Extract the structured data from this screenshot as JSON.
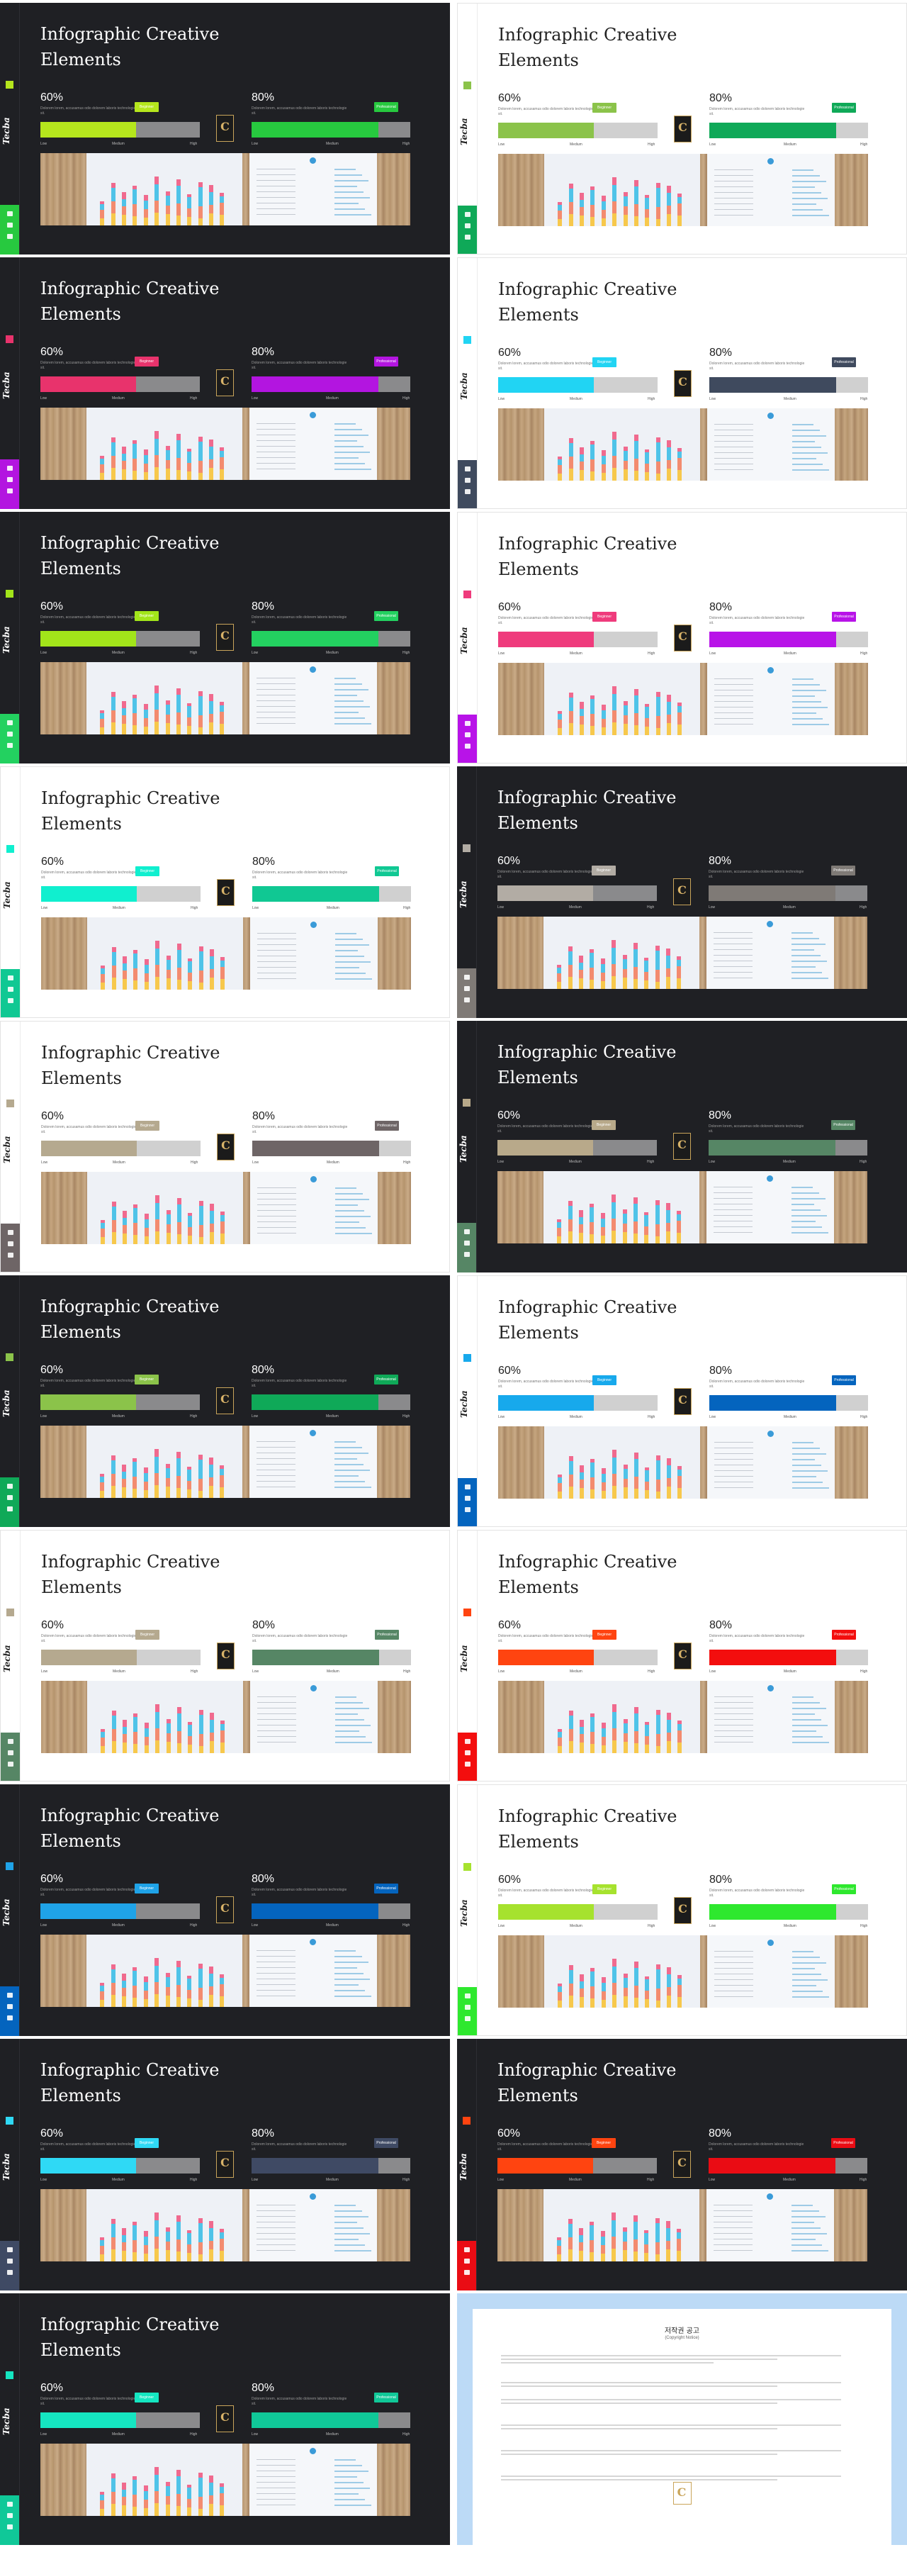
{
  "common": {
    "title": "Infographic Creative Elements",
    "brand": "Tecba",
    "left_percent": "60%",
    "right_percent": "80%",
    "description": "Dolorem lorem, accusamus odio dolorem laboris technologie sit.",
    "left_badge": "Beginner",
    "right_badge": "Professional",
    "scale_low": "Low",
    "scale_medium": "Medium",
    "scale_high": "High",
    "logo_letter": "C"
  },
  "slides": [
    {
      "theme": "dark",
      "left": "#b5e61d",
      "right": "#27c93f"
    },
    {
      "theme": "light",
      "left": "#8bc34a",
      "right": "#0fa958"
    },
    {
      "theme": "dark",
      "left": "#e8336c",
      "right": "#b315e0"
    },
    {
      "theme": "light",
      "left": "#21d4f3",
      "right": "#3f4a5e"
    },
    {
      "theme": "dark",
      "left": "#a2e51a",
      "right": "#23d160"
    },
    {
      "theme": "light",
      "left": "#ef3b7c",
      "right": "#b813e8"
    },
    {
      "theme": "light",
      "left": "#10efcf",
      "right": "#10c893"
    },
    {
      "theme": "dark",
      "left": "#b2aca4",
      "right": "#7f7a76"
    },
    {
      "theme": "light",
      "left": "#b5a98f",
      "right": "#6e6566"
    },
    {
      "theme": "dark",
      "left": "#b8a98a",
      "right": "#568665"
    },
    {
      "theme": "dark",
      "left": "#8bc34a",
      "right": "#0fa958"
    },
    {
      "theme": "light",
      "left": "#17a9ec",
      "right": "#0464be"
    },
    {
      "theme": "light",
      "left": "#b5a98f",
      "right": "#568665"
    },
    {
      "theme": "light",
      "left": "#ff4410",
      "right": "#f30e0e"
    },
    {
      "theme": "dark",
      "left": "#1fa3e8",
      "right": "#0464be"
    },
    {
      "theme": "light",
      "left": "#a6e22e",
      "right": "#2ee82e"
    },
    {
      "theme": "dark",
      "left": "#2fd9f5",
      "right": "#3f4a64"
    },
    {
      "theme": "dark",
      "left": "#ff4410",
      "right": "#ea0c14"
    },
    {
      "theme": "dark",
      "left": "#15e6c1",
      "right": "#10c898"
    }
  ],
  "copyright": {
    "title": "저작권 공고",
    "subtitle": "(Copyright Notice)"
  }
}
